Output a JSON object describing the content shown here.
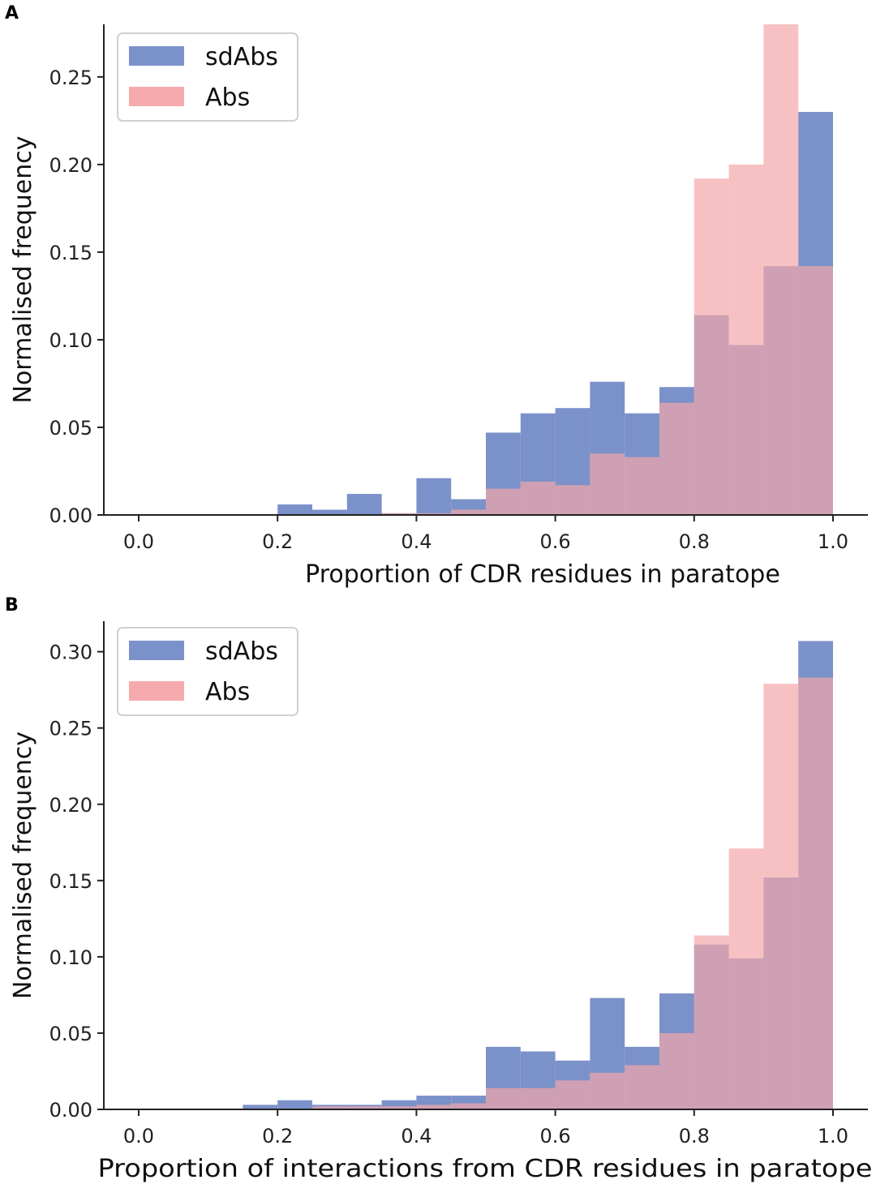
{
  "chart_data": [
    {
      "panel": "A",
      "type": "bar",
      "title": "",
      "xlabel": "Proportion of CDR residues in paratope",
      "ylabel": "Normalised frequency",
      "xlim": [
        -0.1,
        1.05
      ],
      "ylim": [
        0,
        0.28
      ],
      "xticks": [
        "0.0",
        "0.2",
        "0.4",
        "0.6",
        "0.8",
        "1.0"
      ],
      "yticks": [
        "0.00",
        "0.05",
        "0.10",
        "0.15",
        "0.20",
        "0.25"
      ],
      "bin_width": 0.05,
      "legend_position": "top-left",
      "series": [
        {
          "name": "sdAbs",
          "color": "#7b91c9",
          "bin_starts": [
            0.2,
            0.25,
            0.3,
            0.35,
            0.4,
            0.45,
            0.5,
            0.55,
            0.6,
            0.65,
            0.7,
            0.75,
            0.8,
            0.85,
            0.9,
            0.95
          ],
          "values": [
            0.006,
            0.003,
            0.012,
            0.001,
            0.021,
            0.009,
            0.047,
            0.058,
            0.061,
            0.076,
            0.058,
            0.073,
            0.114,
            0.097,
            0.142,
            0.23
          ]
        },
        {
          "name": "Abs",
          "color": "#f4a6aa",
          "bin_starts": [
            0.35,
            0.4,
            0.45,
            0.5,
            0.55,
            0.6,
            0.65,
            0.7,
            0.75,
            0.8,
            0.85,
            0.9,
            0.95
          ],
          "values": [
            0.001,
            0.001,
            0.003,
            0.015,
            0.019,
            0.017,
            0.035,
            0.033,
            0.064,
            0.192,
            0.2,
            0.28,
            0.142
          ]
        }
      ]
    },
    {
      "panel": "B",
      "type": "bar",
      "title": "",
      "xlabel": "Proportion of interactions from CDR residues in paratope",
      "ylabel": "Normalised frequency",
      "xlim": [
        -0.1,
        1.05
      ],
      "ylim": [
        0,
        0.32
      ],
      "xticks": [
        "0.0",
        "0.2",
        "0.4",
        "0.6",
        "0.8",
        "1.0"
      ],
      "yticks": [
        "0.00",
        "0.05",
        "0.10",
        "0.15",
        "0.20",
        "0.25",
        "0.30"
      ],
      "bin_width": 0.05,
      "legend_position": "top-left",
      "series": [
        {
          "name": "sdAbs",
          "color": "#7b91c9",
          "bin_starts": [
            0.15,
            0.2,
            0.25,
            0.3,
            0.35,
            0.4,
            0.45,
            0.5,
            0.55,
            0.6,
            0.65,
            0.7,
            0.75,
            0.8,
            0.85,
            0.9,
            0.95
          ],
          "values": [
            0.003,
            0.006,
            0.003,
            0.003,
            0.006,
            0.009,
            0.009,
            0.041,
            0.038,
            0.032,
            0.073,
            0.041,
            0.076,
            0.108,
            0.099,
            0.152,
            0.307
          ]
        },
        {
          "name": "Abs",
          "color": "#f4a6aa",
          "bin_starts": [
            0.25,
            0.3,
            0.35,
            0.4,
            0.45,
            0.5,
            0.55,
            0.6,
            0.65,
            0.7,
            0.75,
            0.8,
            0.85,
            0.9,
            0.95
          ],
          "values": [
            0.002,
            0.002,
            0.002,
            0.003,
            0.004,
            0.014,
            0.014,
            0.019,
            0.024,
            0.029,
            0.05,
            0.114,
            0.171,
            0.279,
            0.283
          ]
        }
      ]
    }
  ],
  "legend_labels": [
    "sdAbs",
    "Abs"
  ]
}
